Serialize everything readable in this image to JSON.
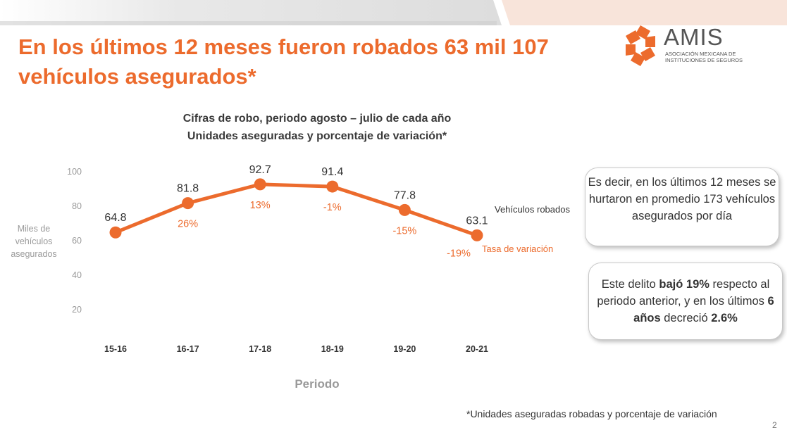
{
  "slide": {
    "title": "En los últimos 12 meses fueron robados 63 mil 107 vehículos asegurados*",
    "page_number": "2",
    "footnote": "*Unidades aseguradas robadas y porcentaje de variación"
  },
  "logo": {
    "word": "AMIS",
    "subtitle": "ASOCIACIÓN MEXICANA DE INSTITUCIONES DE SEGUROS"
  },
  "chart_data": {
    "type": "line",
    "title": "Cifras de robo, periodo agosto – julio de cada año",
    "subtitle": "Unidades aseguradas y porcentaje de variación*",
    "xlabel": "Periodo",
    "ylabel": "Miles de vehículos asegurados",
    "categories": [
      "15-16",
      "16-17",
      "17-18",
      "18-19",
      "19-20",
      "20-21"
    ],
    "yticks": [
      20,
      40,
      60,
      80,
      100
    ],
    "ylim": [
      0,
      100
    ],
    "grid": false,
    "series": [
      {
        "name": "Vehículos robados",
        "values": [
          64.8,
          81.8,
          92.7,
          91.4,
          77.8,
          63.1
        ],
        "labels": [
          "64.8",
          "81.8",
          "92.7",
          "91.4",
          "77.8",
          "63.1"
        ],
        "color": "#ec6b2d"
      },
      {
        "name": "Tasa de variación",
        "labels": [
          "",
          "26%",
          "13%",
          "-1%",
          "-15%",
          "-19%"
        ],
        "color": "#ec6b2d"
      }
    ]
  },
  "callouts": {
    "box1": "Es decir, en los últimos 12 meses se hurtaron en promedio 173 vehículos asegurados por día",
    "box2_parts": [
      "Este delito ",
      "bajó 19%",
      " respecto al periodo anterior, y en los últimos ",
      "6 años",
      " decreció ",
      "2.6%"
    ]
  },
  "colors": {
    "accent": "#ec6b2d",
    "axis_text": "#9a9a9a",
    "band_gray": "#e4e4e4"
  }
}
